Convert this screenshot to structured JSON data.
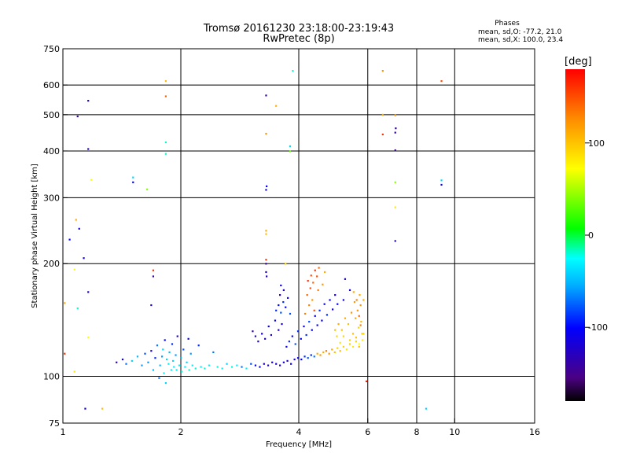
{
  "chart_data": {
    "type": "scatter",
    "title": "Tromsø 20161230 23:18:00-23:19:43",
    "subtitle": "RwPretec (8p)",
    "xlabel": "Frequency [MHz]",
    "ylabel": "Stationary phase Virtual Height [km]",
    "x_scale": "log",
    "y_scale": "log",
    "xlim": [
      1,
      16
    ],
    "ylim": [
      75,
      750
    ],
    "x_ticks": [
      1,
      2,
      4,
      6,
      8,
      10,
      16
    ],
    "x_tick_labels": [
      "1",
      "2",
      "4",
      "6",
      "8",
      "10",
      "16"
    ],
    "x_grid": [
      2,
      4,
      6,
      8,
      10
    ],
    "y_ticks": [
      75,
      100,
      200,
      300,
      400,
      500,
      600,
      750
    ],
    "y_tick_labels": [
      "75",
      "100",
      "200",
      "300",
      "400",
      "500",
      "600",
      "750"
    ],
    "y_grid": [
      100,
      200,
      300,
      400,
      500,
      600
    ],
    "grid": true,
    "legend_title": "Phases",
    "legend_lines": [
      "mean, sd,O: -77.2, 21.0",
      "mean, sd,X: 100.0, 23.4"
    ],
    "colorbar": {
      "label": "[deg]",
      "range": [
        -180,
        180
      ],
      "ticks": [
        100,
        0,
        -100
      ],
      "tick_labels": [
        "100",
        "0",
        "-100"
      ]
    },
    "points": [
      [
        1.16,
        545,
        -130
      ],
      [
        1.09,
        495,
        -140
      ],
      [
        1.16,
        405,
        -130
      ],
      [
        1.18,
        335,
        70
      ],
      [
        1.04,
        232,
        -100
      ],
      [
        1.08,
        262,
        110
      ],
      [
        1.1,
        248,
        -110
      ],
      [
        1.13,
        207,
        -110
      ],
      [
        1.07,
        193,
        70
      ],
      [
        1.16,
        168,
        -120
      ],
      [
        1.09,
        152,
        -20
      ],
      [
        1.01,
        157,
        110
      ],
      [
        1.16,
        127,
        70
      ],
      [
        1.01,
        115,
        160
      ],
      [
        1.07,
        103,
        80
      ],
      [
        1.14,
        82,
        -110
      ],
      [
        1.26,
        82,
        100
      ],
      [
        1.83,
        615,
        100
      ],
      [
        1.83,
        560,
        140
      ],
      [
        1.83,
        422,
        -20
      ],
      [
        1.83,
        393,
        -20
      ],
      [
        1.51,
        340,
        -40
      ],
      [
        1.51,
        330,
        -100
      ],
      [
        1.64,
        316,
        40
      ],
      [
        1.7,
        192,
        160
      ],
      [
        1.7,
        185,
        -140
      ],
      [
        1.68,
        155,
        -130
      ],
      [
        3.3,
        563,
        -140
      ],
      [
        3.5,
        528,
        110
      ],
      [
        3.3,
        445,
        120
      ],
      [
        3.31,
        322,
        -100
      ],
      [
        3.3,
        315,
        -110
      ],
      [
        3.3,
        245,
        110
      ],
      [
        3.3,
        240,
        100
      ],
      [
        3.3,
        205,
        160
      ],
      [
        3.3,
        200,
        -140
      ],
      [
        3.3,
        190,
        -130
      ],
      [
        3.31,
        185,
        -120
      ],
      [
        3.7,
        200,
        90
      ],
      [
        3.8,
        412,
        -40
      ],
      [
        3.8,
        400,
        30
      ],
      [
        3.86,
        655,
        -20
      ],
      [
        3.6,
        175,
        -110
      ],
      [
        6.55,
        655,
        120
      ],
      [
        6.55,
        500,
        110
      ],
      [
        6.55,
        443,
        160
      ],
      [
        7.05,
        498,
        110
      ],
      [
        7.07,
        460,
        -140
      ],
      [
        7.05,
        448,
        -140
      ],
      [
        7.05,
        402,
        -150
      ],
      [
        7.05,
        330,
        40
      ],
      [
        7.05,
        283,
        80
      ],
      [
        7.05,
        230,
        -130
      ],
      [
        8.45,
        82,
        -40
      ],
      [
        9.25,
        615,
        150
      ],
      [
        9.25,
        334,
        -40
      ],
      [
        9.25,
        325,
        -110
      ],
      [
        5.95,
        97,
        170
      ],
      [
        1.37,
        109,
        -140
      ],
      [
        1.42,
        111,
        -110
      ],
      [
        1.45,
        108,
        -70
      ],
      [
        1.5,
        110,
        -40
      ],
      [
        1.55,
        113,
        -50
      ],
      [
        1.59,
        107,
        -60
      ],
      [
        1.62,
        115,
        -80
      ],
      [
        1.65,
        109,
        -60
      ],
      [
        1.68,
        117,
        -120
      ],
      [
        1.7,
        104,
        -50
      ],
      [
        1.72,
        112,
        -90
      ],
      [
        1.74,
        121,
        -70
      ],
      [
        1.76,
        99,
        -70
      ],
      [
        1.77,
        107,
        -50
      ],
      [
        1.79,
        113,
        -60
      ],
      [
        1.8,
        118,
        -40
      ],
      [
        1.81,
        102,
        -30
      ],
      [
        1.82,
        125,
        -100
      ],
      [
        1.83,
        96,
        -40
      ],
      [
        1.84,
        111,
        -40
      ],
      [
        1.86,
        108,
        -30
      ],
      [
        1.87,
        116,
        -50
      ],
      [
        1.89,
        104,
        -30
      ],
      [
        1.9,
        122,
        -90
      ],
      [
        1.91,
        110,
        -40
      ],
      [
        1.92,
        106,
        -30
      ],
      [
        1.94,
        114,
        -60
      ],
      [
        1.95,
        104,
        -30
      ],
      [
        1.96,
        128,
        -120
      ],
      [
        1.98,
        107,
        -30
      ],
      [
        2.0,
        112,
        -50
      ],
      [
        2.01,
        103,
        -20
      ],
      [
        2.03,
        118,
        -80
      ],
      [
        2.05,
        106,
        -30
      ],
      [
        2.07,
        109,
        -40
      ],
      [
        2.09,
        126,
        -110
      ],
      [
        2.1,
        104,
        -20
      ],
      [
        2.12,
        115,
        -60
      ],
      [
        2.14,
        107,
        -30
      ],
      [
        2.18,
        105,
        -20
      ],
      [
        2.22,
        121,
        -90
      ],
      [
        2.25,
        106,
        -30
      ],
      [
        2.3,
        105,
        -20
      ],
      [
        2.36,
        107,
        -30
      ],
      [
        2.42,
        116,
        -70
      ],
      [
        2.48,
        106,
        -20
      ],
      [
        2.55,
        105,
        -30
      ],
      [
        2.62,
        108,
        -40
      ],
      [
        2.7,
        106,
        -20
      ],
      [
        2.78,
        107,
        -30
      ],
      [
        2.86,
        106,
        -70
      ],
      [
        2.94,
        105,
        -30
      ],
      [
        3.02,
        108,
        -80
      ],
      [
        3.1,
        107,
        -100
      ],
      [
        3.18,
        106,
        -110
      ],
      [
        3.26,
        108,
        -120
      ],
      [
        3.34,
        107,
        -130
      ],
      [
        3.42,
        109,
        -110
      ],
      [
        3.5,
        108,
        -120
      ],
      [
        3.58,
        107,
        -130
      ],
      [
        3.66,
        109,
        -110
      ],
      [
        3.74,
        110,
        -120
      ],
      [
        3.82,
        108,
        -110
      ],
      [
        3.9,
        111,
        -120
      ],
      [
        3.98,
        112,
        -110
      ],
      [
        4.06,
        111,
        -100
      ],
      [
        4.14,
        113,
        -90
      ],
      [
        4.22,
        112,
        -80
      ],
      [
        4.3,
        114,
        -90
      ],
      [
        4.38,
        113,
        -70
      ],
      [
        4.46,
        115,
        110
      ],
      [
        4.54,
        114,
        120
      ],
      [
        4.62,
        116,
        110
      ],
      [
        4.7,
        117,
        130
      ],
      [
        4.78,
        115,
        120
      ],
      [
        4.86,
        118,
        110
      ],
      [
        4.94,
        116,
        100
      ],
      [
        5.02,
        119,
        90
      ],
      [
        5.1,
        117,
        100
      ],
      [
        5.2,
        120,
        90
      ],
      [
        5.3,
        118,
        80
      ],
      [
        5.4,
        122,
        90
      ],
      [
        5.5,
        120,
        80
      ],
      [
        5.6,
        124,
        90
      ],
      [
        5.7,
        122,
        70
      ],
      [
        3.05,
        132,
        -140
      ],
      [
        3.1,
        128,
        -130
      ],
      [
        3.15,
        124,
        -130
      ],
      [
        3.22,
        130,
        -120
      ],
      [
        3.28,
        126,
        -130
      ],
      [
        3.35,
        136,
        -110
      ],
      [
        3.4,
        129,
        -120
      ],
      [
        3.48,
        141,
        -100
      ],
      [
        3.55,
        133,
        -120
      ],
      [
        3.62,
        138,
        -110
      ],
      [
        3.5,
        150,
        -90
      ],
      [
        3.55,
        155,
        -100
      ],
      [
        3.6,
        148,
        -80
      ],
      [
        3.65,
        158,
        -90
      ],
      [
        3.7,
        153,
        -100
      ],
      [
        3.75,
        162,
        -110
      ],
      [
        3.8,
        147,
        -80
      ],
      [
        3.58,
        165,
        -140
      ],
      [
        3.66,
        170,
        -130
      ],
      [
        3.72,
        120,
        -100
      ],
      [
        3.78,
        124,
        -90
      ],
      [
        3.85,
        128,
        -100
      ],
      [
        3.92,
        122,
        -80
      ],
      [
        3.98,
        132,
        -90
      ],
      [
        4.05,
        126,
        -100
      ],
      [
        4.12,
        136,
        -110
      ],
      [
        4.18,
        129,
        -90
      ],
      [
        4.25,
        140,
        -80
      ],
      [
        4.32,
        133,
        -100
      ],
      [
        4.4,
        145,
        -100
      ],
      [
        4.46,
        137,
        -110
      ],
      [
        4.52,
        150,
        -90
      ],
      [
        4.58,
        141,
        -100
      ],
      [
        4.65,
        156,
        -110
      ],
      [
        4.72,
        146,
        -90
      ],
      [
        4.8,
        160,
        -100
      ],
      [
        4.88,
        151,
        -110
      ],
      [
        4.95,
        165,
        -120
      ],
      [
        5.02,
        156,
        -100
      ],
      [
        4.2,
        165,
        140
      ],
      [
        4.28,
        172,
        150
      ],
      [
        4.22,
        180,
        160
      ],
      [
        4.3,
        186,
        150
      ],
      [
        4.35,
        178,
        140
      ],
      [
        4.4,
        192,
        160
      ],
      [
        4.45,
        185,
        150
      ],
      [
        4.5,
        195,
        140
      ],
      [
        4.25,
        155,
        130
      ],
      [
        4.33,
        160,
        120
      ],
      [
        4.38,
        150,
        150
      ],
      [
        4.48,
        170,
        130
      ],
      [
        4.6,
        176,
        120
      ],
      [
        4.66,
        190,
        110
      ],
      [
        4.15,
        147,
        130
      ],
      [
        4.95,
        133,
        100
      ],
      [
        5.0,
        128,
        90
      ],
      [
        5.05,
        138,
        110
      ],
      [
        5.1,
        123,
        80
      ],
      [
        5.15,
        133,
        100
      ],
      [
        5.2,
        128,
        90
      ],
      [
        5.25,
        143,
        110
      ],
      [
        5.3,
        118,
        80
      ],
      [
        5.35,
        138,
        100
      ],
      [
        5.4,
        125,
        90
      ],
      [
        5.45,
        148,
        120
      ],
      [
        5.5,
        130,
        100
      ],
      [
        5.52,
        168,
        110
      ],
      [
        5.55,
        158,
        120
      ],
      [
        5.58,
        143,
        110
      ],
      [
        5.6,
        127,
        100
      ],
      [
        5.62,
        160,
        130
      ],
      [
        5.65,
        150,
        120
      ],
      [
        5.68,
        135,
        90
      ],
      [
        5.7,
        120,
        100
      ],
      [
        5.72,
        165,
        110
      ],
      [
        5.75,
        155,
        120
      ],
      [
        5.77,
        140,
        100
      ],
      [
        5.8,
        130,
        90
      ],
      [
        5.82,
        125,
        80
      ],
      [
        5.7,
        145,
        140
      ],
      [
        5.75,
        137,
        130
      ],
      [
        5.25,
        182,
        -130
      ],
      [
        5.4,
        170,
        -120
      ],
      [
        5.2,
        160,
        -110
      ],
      [
        5.85,
        160,
        110
      ],
      [
        5.85,
        130,
        90
      ]
    ]
  }
}
